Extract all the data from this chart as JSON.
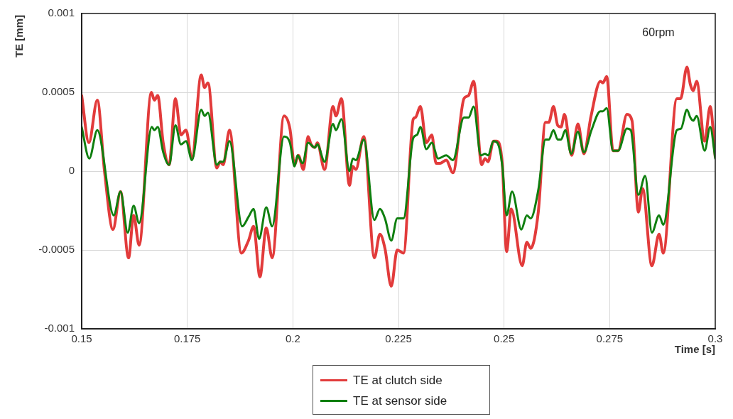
{
  "chart_data": {
    "type": "line",
    "xlabel": "Time [s]",
    "ylabel": "TE [mm]",
    "annotations": [
      "60rpm"
    ],
    "xlim": [
      0.15,
      0.3
    ],
    "xticks": [
      0.15,
      0.175,
      0.2,
      0.225,
      0.25,
      0.275,
      0.3
    ],
    "ylim": [
      -0.001,
      0.001
    ],
    "yticks": [
      -0.001,
      -0.0005,
      0,
      0.0005,
      0.001
    ],
    "grid": true,
    "legend": "bottom",
    "marker": "none",
    "line_style": "solid",
    "series": [
      {
        "name": "TE at clutch side",
        "color": "#e23b3b",
        "x": [
          0.15,
          0.1517,
          0.1537,
          0.1554,
          0.1574,
          0.1592,
          0.1611,
          0.1623,
          0.1636,
          0.1665,
          0.1672,
          0.168,
          0.1693,
          0.1707,
          0.1722,
          0.1735,
          0.1747,
          0.1761,
          0.1783,
          0.1791,
          0.1799,
          0.182,
          0.1828,
          0.1835,
          0.185,
          0.1878,
          0.1895,
          0.1907,
          0.1922,
          0.1937,
          0.1951,
          0.1979,
          0.1993,
          0.2004,
          0.2013,
          0.2025,
          0.2036,
          0.2043,
          0.2052,
          0.2058,
          0.2075,
          0.2095,
          0.2102,
          0.2115,
          0.2134,
          0.2142,
          0.2149,
          0.2168,
          0.2193,
          0.2206,
          0.2218,
          0.2233,
          0.2247,
          0.2262,
          0.2285,
          0.229,
          0.2302,
          0.2316,
          0.2329,
          0.2339,
          0.2349,
          0.2363,
          0.2379,
          0.2405,
          0.2416,
          0.2428,
          0.2447,
          0.2455,
          0.2462,
          0.2475,
          0.2482,
          0.2496,
          0.2506,
          0.2517,
          0.2543,
          0.2554,
          0.2563,
          0.2581,
          0.2598,
          0.2606,
          0.2617,
          0.2627,
          0.2635,
          0.2643,
          0.266,
          0.2675,
          0.2689,
          0.2706,
          0.2728,
          0.2734,
          0.2743,
          0.2758,
          0.277,
          0.2791,
          0.2803,
          0.2818,
          0.2828,
          0.285,
          0.2867,
          0.2877,
          0.2909,
          0.2918,
          0.2933,
          0.2941,
          0.2948,
          0.2956,
          0.2975,
          0.2988,
          0.3
        ],
        "values": [
          0.00048,
          0.00018,
          0.00045,
          0,
          -0.00037,
          -0.00013,
          -0.00055,
          -0.00028,
          -0.00047,
          0.0005,
          0.00045,
          0.00048,
          0.00018,
          4e-05,
          0.00046,
          0.00023,
          0.00026,
          8e-05,
          0.00061,
          0.00053,
          0.00056,
          2e-05,
          6e-05,
          4e-05,
          0.00026,
          -0.00052,
          -0.00044,
          -0.00035,
          -0.00067,
          -0.00036,
          -0.00055,
          0.00035,
          0.00027,
          4e-05,
          0.0001,
          1e-05,
          0.00022,
          0.00017,
          0.00015,
          0.00018,
          1e-05,
          0.00041,
          0.00035,
          0.00046,
          -9e-05,
          3e-05,
          1e-05,
          0.00022,
          -0.00055,
          -0.0004,
          -0.00049,
          -0.00073,
          -0.0005,
          -0.00052,
          0.00033,
          0.00034,
          0.00041,
          0.00018,
          0.00023,
          5e-05,
          5e-05,
          7e-05,
          -1e-05,
          0.00046,
          0.00048,
          0.00057,
          4e-05,
          8e-05,
          6e-05,
          0.00019,
          0.00019,
          4e-05,
          -0.00051,
          -0.00024,
          -0.0006,
          -0.00045,
          -0.00049,
          -0.00026,
          0.00031,
          0.00031,
          0.00041,
          0.00029,
          0.00028,
          0.00036,
          0.0001,
          0.0003,
          0.00011,
          0.00035,
          0.00057,
          0.00056,
          0.0006,
          0.00013,
          0.00013,
          0.00036,
          0.00032,
          -0.00026,
          -0.00011,
          -0.0006,
          -0.0004,
          -0.00052,
          0.00046,
          0.00046,
          0.00066,
          0.00055,
          0.00051,
          0.00057,
          0.00019,
          0.00041,
          9e-05
        ]
      },
      {
        "name": "TE at sensor side",
        "color": "#0f7f0f",
        "x": [
          0.15,
          0.1518,
          0.1537,
          0.1576,
          0.1592,
          0.1609,
          0.1623,
          0.1636,
          0.1666,
          0.1672,
          0.168,
          0.1693,
          0.1707,
          0.1722,
          0.1735,
          0.1747,
          0.1761,
          0.1783,
          0.1791,
          0.1799,
          0.182,
          0.1828,
          0.1835,
          0.185,
          0.188,
          0.1895,
          0.1907,
          0.192,
          0.1937,
          0.1951,
          0.1979,
          0.1993,
          0.2004,
          0.2011,
          0.2023,
          0.2036,
          0.2052,
          0.2058,
          0.2075,
          0.2095,
          0.2102,
          0.2115,
          0.2134,
          0.2142,
          0.2149,
          0.2168,
          0.2193,
          0.2206,
          0.2218,
          0.2233,
          0.2247,
          0.2262,
          0.2285,
          0.2294,
          0.2302,
          0.2316,
          0.2329,
          0.2344,
          0.2363,
          0.2379,
          0.2405,
          0.2416,
          0.2428,
          0.2445,
          0.2455,
          0.2462,
          0.2475,
          0.2484,
          0.2496,
          0.2506,
          0.2519,
          0.2541,
          0.2554,
          0.2563,
          0.2581,
          0.2598,
          0.2606,
          0.2617,
          0.2627,
          0.2635,
          0.2645,
          0.2659,
          0.2675,
          0.2689,
          0.2707,
          0.2728,
          0.2734,
          0.2743,
          0.2758,
          0.277,
          0.2791,
          0.28,
          0.2818,
          0.2834,
          0.285,
          0.2867,
          0.2877,
          0.2909,
          0.2919,
          0.2933,
          0.2941,
          0.2948,
          0.2956,
          0.2975,
          0.2988,
          0.3
        ],
        "values": [
          0.00028,
          8e-05,
          0.00026,
          -0.00028,
          -0.00013,
          -0.00039,
          -0.00022,
          -0.00033,
          0.00028,
          0.00026,
          0.00028,
          0.00012,
          4e-05,
          0.00029,
          0.00017,
          0.00019,
          7e-05,
          0.00039,
          0.00035,
          0.00037,
          4e-05,
          6e-05,
          6e-05,
          0.00019,
          -0.00035,
          -0.00029,
          -0.00024,
          -0.00043,
          -0.00023,
          -0.00035,
          0.00022,
          0.00018,
          3e-05,
          0.0001,
          5e-05,
          0.00018,
          0.00015,
          0.00017,
          6e-05,
          0.0003,
          0.00026,
          0.00033,
          0,
          8e-05,
          7e-05,
          0.0002,
          -0.00031,
          -0.00024,
          -0.0003,
          -0.00044,
          -0.0003,
          -0.0003,
          0.00021,
          0.00023,
          0.00028,
          0.00014,
          0.00018,
          8e-05,
          0.0001,
          7e-05,
          0.00034,
          0.00034,
          0.00041,
          0.0001,
          0.00011,
          0.0001,
          0.00019,
          0.00018,
          3e-05,
          -0.00028,
          -0.00013,
          -0.00037,
          -0.00028,
          -0.0003,
          -0.00012,
          0.0002,
          0.0002,
          0.00026,
          0.0002,
          0.0002,
          0.00026,
          0.00011,
          0.00025,
          0.00012,
          0.00026,
          0.00038,
          0.00038,
          0.0004,
          0.00013,
          0.00013,
          0.00027,
          0.00026,
          -0.00015,
          -3e-05,
          -0.00039,
          -0.00028,
          -0.00034,
          0.00026,
          0.00027,
          0.00039,
          0.00034,
          0.00032,
          0.00035,
          0.00013,
          0.00028,
          8e-05
        ]
      }
    ]
  }
}
